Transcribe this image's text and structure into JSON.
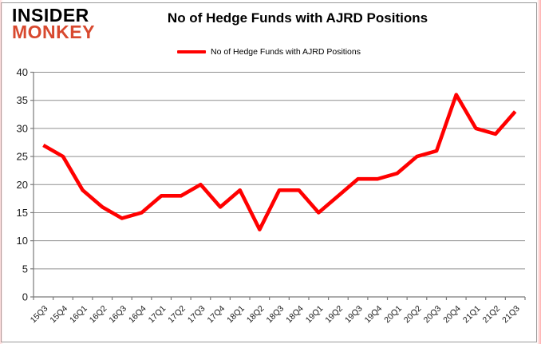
{
  "logo": {
    "line1": "INSIDER",
    "line2": "MONKEY"
  },
  "title": "No of Hedge Funds with AJRD Positions",
  "legend": {
    "label": "No of Hedge Funds with AJRD Positions"
  },
  "colors": {
    "line": "#ff0000",
    "logo_black": "#000000",
    "logo_red": "#d8492f",
    "grid": "#8f8f8f",
    "axis": "#7a7a7a",
    "tick_text": "#1a1a1a",
    "background": "#ffffff",
    "frame": "#9a9a9a"
  },
  "chart_data": {
    "type": "line",
    "title": "No of Hedge Funds with AJRD Positions",
    "categories": [
      "15Q3",
      "15Q4",
      "16Q1",
      "16Q2",
      "16Q3",
      "16Q4",
      "17Q1",
      "17Q2",
      "17Q3",
      "17Q4",
      "18Q1",
      "18Q2",
      "18Q3",
      "18Q4",
      "19Q1",
      "19Q2",
      "19Q3",
      "19Q4",
      "20Q1",
      "20Q2",
      "20Q3",
      "20Q4",
      "21Q1",
      "21Q2",
      "21Q3"
    ],
    "series": [
      {
        "name": "No of Hedge Funds with AJRD Positions",
        "color": "#ff0000",
        "values": [
          27,
          25,
          19,
          16,
          14,
          15,
          18,
          18,
          20,
          16,
          19,
          12,
          19,
          19,
          15,
          18,
          21,
          21,
          22,
          25,
          26,
          36,
          30,
          29,
          33
        ]
      }
    ],
    "xlabel": "",
    "ylabel": "",
    "ylim": [
      0,
      40
    ],
    "yticks": [
      0,
      5,
      10,
      15,
      20,
      25,
      30,
      35,
      40
    ],
    "grid": true,
    "legend_position": "top",
    "x_tick_label_rotation": -45
  }
}
